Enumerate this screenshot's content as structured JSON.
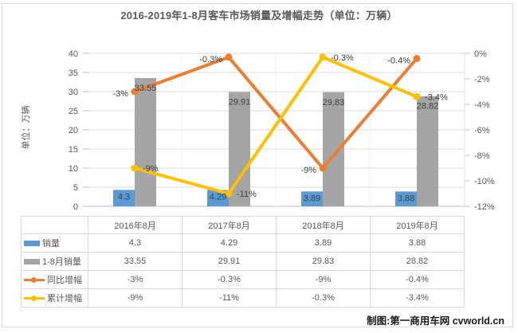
{
  "title": "2016-2019年1-8月客车市场销量及增幅走势（单位：万辆）",
  "y_axis_title": "单位：万辆",
  "credit": "制图:第一商用车网 cvworld.cn",
  "colors": {
    "sales_bar": "#5B9BD5",
    "cumulative_bar": "#A5A5A5",
    "yoy_line": "#ED7D31",
    "cumulative_line": "#FFC000",
    "gridline": "#D9D9D9",
    "axis_text": "#595959",
    "data_label": "#404040",
    "table_border": "#D9D9D9"
  },
  "chart_data": {
    "type": "bar+line",
    "title": "2016-2019年1-8月客车市场销量及增幅走势（单位：万辆）",
    "categories": [
      "2016年8月",
      "2017年8月",
      "2018年8月",
      "2019年8月"
    ],
    "series": [
      {
        "name": "销量",
        "type": "bar",
        "axis": "left",
        "color": "#5B9BD5",
        "values": [
          4.3,
          4.29,
          3.89,
          3.88
        ],
        "labels": [
          "4.3",
          "4.29",
          "3.89",
          "3.88"
        ]
      },
      {
        "name": "1-8月销量",
        "type": "bar",
        "axis": "left",
        "color": "#A5A5A5",
        "values": [
          33.55,
          29.91,
          29.83,
          28.82
        ],
        "labels": [
          "33.55",
          "29.91",
          "29.83",
          "28.82"
        ]
      },
      {
        "name": "同比增幅",
        "type": "line",
        "axis": "right",
        "color": "#ED7D31",
        "label_side": "left",
        "values": [
          -3,
          -0.3,
          -9,
          -0.4
        ],
        "labels": [
          "-3%",
          "-0.3%",
          "-9%",
          "-0.4%"
        ]
      },
      {
        "name": "累计增幅",
        "type": "line",
        "axis": "right",
        "color": "#FFC000",
        "label_side": "right",
        "values": [
          -9,
          -11,
          -0.3,
          -3.4
        ],
        "labels": [
          "-9%",
          "-11%",
          "-0.3%",
          "-3.4%"
        ]
      }
    ],
    "left_axis": {
      "title": "单位：万辆",
      "min": 0,
      "max": 40,
      "step": 5,
      "ticks": [
        "0",
        "5",
        "10",
        "15",
        "20",
        "25",
        "30",
        "35",
        "40"
      ]
    },
    "right_axis": {
      "min": -12,
      "max": 0,
      "step": 2,
      "ticks": [
        "0%",
        "-2%",
        "-4%",
        "-6%",
        "-8%",
        "-10%",
        "-12%"
      ]
    },
    "grid": true,
    "legend_position": "table-left"
  },
  "table": {
    "columns": [
      "2016年8月",
      "2017年8月",
      "2018年8月",
      "2019年8月"
    ],
    "rows": [
      {
        "name": "销量",
        "swatch": "bar",
        "color": "#5B9BD5",
        "values": [
          "4.3",
          "4.29",
          "3.89",
          "3.88"
        ]
      },
      {
        "name": "1-8月销量",
        "swatch": "bar",
        "color": "#A5A5A5",
        "values": [
          "33.55",
          "29.91",
          "29.83",
          "28.82"
        ]
      },
      {
        "name": "同比增幅",
        "swatch": "line",
        "color": "#ED7D31",
        "values": [
          "-3%",
          "-0.3%",
          "-9%",
          "-0.4%"
        ]
      },
      {
        "name": "累计增幅",
        "swatch": "line",
        "color": "#FFC000",
        "values": [
          "-9%",
          "-11%",
          "-0.3%",
          "-3.4%"
        ]
      }
    ]
  }
}
